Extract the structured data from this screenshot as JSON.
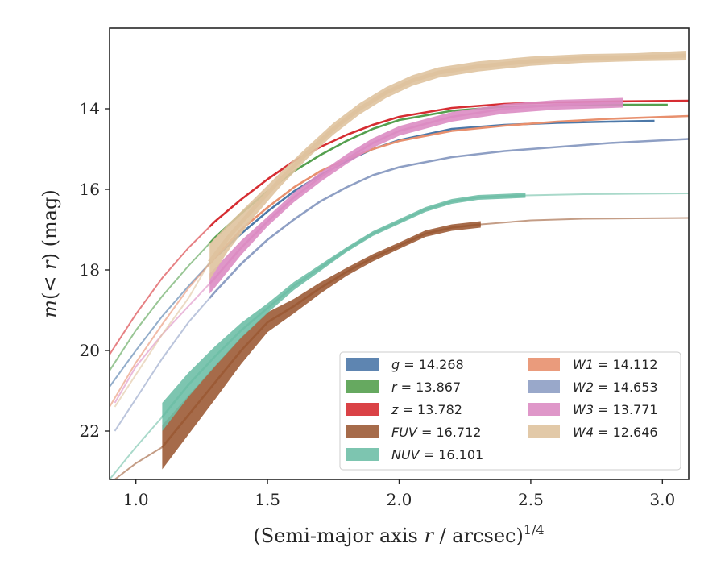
{
  "chart_data": {
    "type": "line",
    "title": "",
    "xlabel": "(Semi-major axis r / arcsec)^{1/4}",
    "xlabel_parts": {
      "prefix": "(Semi-major axis ",
      "var": "r",
      "suffix": " / arcsec)",
      "superscript": "1/4"
    },
    "ylabel": "m(< r) (mag)",
    "ylabel_parts": {
      "italic_a": "m",
      "upright_b": "(",
      "italic_c": "< r",
      "upright_d": ") (mag)"
    },
    "xlim": [
      0.9,
      3.1
    ],
    "ylim": [
      23.2,
      12.0
    ],
    "y_inverted": true,
    "x_ticks": [
      1.0,
      1.5,
      2.0,
      2.5,
      3.0
    ],
    "x_tick_labels": [
      "1.0",
      "1.5",
      "2.0",
      "2.5",
      "3.0"
    ],
    "y_ticks": [
      14,
      16,
      18,
      20,
      22
    ],
    "y_tick_labels": [
      "14",
      "16",
      "18",
      "20",
      "22"
    ],
    "grid": false,
    "legend_position": "lower-right",
    "legend_columns": 2,
    "series": [
      {
        "name": "g",
        "label": "g = 14.268",
        "color": "#4c78a8",
        "x": [
          0.9,
          1.0,
          1.1,
          1.2,
          1.3,
          1.4,
          1.5,
          1.6,
          1.7,
          1.8,
          1.9,
          2.0,
          2.2,
          2.4,
          2.6,
          2.8,
          2.97
        ],
        "y": [
          20.9,
          20.0,
          19.15,
          18.4,
          17.7,
          17.1,
          16.55,
          16.05,
          15.65,
          15.3,
          15.0,
          14.78,
          14.5,
          14.4,
          14.35,
          14.32,
          14.3
        ],
        "solid_from": 1.28,
        "band": [],
        "end_label": "14.268"
      },
      {
        "name": "r",
        "label": "r = 13.867",
        "color": "#55a04f",
        "x": [
          0.9,
          1.0,
          1.1,
          1.2,
          1.3,
          1.4,
          1.5,
          1.6,
          1.7,
          1.8,
          1.9,
          2.0,
          2.2,
          2.4,
          2.6,
          2.8,
          3.02
        ],
        "y": [
          20.5,
          19.5,
          18.65,
          17.9,
          17.2,
          16.6,
          16.05,
          15.55,
          15.15,
          14.8,
          14.5,
          14.28,
          14.05,
          13.95,
          13.92,
          13.9,
          13.9
        ],
        "solid_from": 1.28,
        "band": [],
        "end_label": "13.867"
      },
      {
        "name": "z",
        "label": "z = 13.782",
        "color": "#d62d32",
        "x": [
          0.9,
          1.0,
          1.1,
          1.2,
          1.3,
          1.4,
          1.5,
          1.6,
          1.7,
          1.8,
          1.9,
          2.0,
          2.2,
          2.4,
          2.6,
          2.8,
          3.1
        ],
        "y": [
          20.1,
          19.1,
          18.2,
          17.45,
          16.8,
          16.25,
          15.75,
          15.3,
          14.95,
          14.65,
          14.4,
          14.2,
          13.98,
          13.88,
          13.84,
          13.82,
          13.8
        ],
        "solid_from": 1.28,
        "band": [],
        "end_label": "13.782"
      },
      {
        "name": "FUV",
        "label": "FUV = 16.712",
        "color": "#9c5b36",
        "x": [
          0.92,
          1.0,
          1.1,
          1.2,
          1.3,
          1.4,
          1.5,
          1.6,
          1.7,
          1.8,
          1.9,
          2.0,
          2.1,
          2.2,
          2.31,
          2.5,
          2.7,
          2.9,
          3.1
        ],
        "y": [
          23.2,
          22.8,
          22.4,
          21.6,
          20.8,
          20.0,
          19.3,
          18.9,
          18.45,
          18.05,
          17.7,
          17.4,
          17.1,
          16.95,
          16.87,
          16.77,
          16.73,
          16.72,
          16.71
        ],
        "solid_from": 1.1,
        "solid_to": 2.31,
        "band": [
          [
            1.1,
            0.55
          ],
          [
            1.33,
            0.4
          ],
          [
            1.55,
            0.2
          ],
          [
            1.8,
            0.1
          ],
          [
            2.0,
            0.08
          ]
        ],
        "end_label": "16.712"
      },
      {
        "name": "NUV",
        "label": "NUV = 16.101",
        "color": "#6fbfa7",
        "x": [
          0.9,
          1.0,
          1.1,
          1.2,
          1.3,
          1.4,
          1.5,
          1.6,
          1.7,
          1.8,
          1.9,
          2.0,
          2.1,
          2.2,
          2.3,
          2.48,
          2.7,
          2.9,
          3.1
        ],
        "y": [
          23.2,
          22.4,
          21.65,
          20.85,
          20.15,
          19.5,
          18.95,
          18.4,
          17.95,
          17.5,
          17.1,
          16.8,
          16.5,
          16.3,
          16.2,
          16.15,
          16.12,
          16.11,
          16.1
        ],
        "solid_from": 1.1,
        "solid_to": 2.48,
        "band": [
          [
            1.1,
            0.35
          ],
          [
            1.3,
            0.25
          ],
          [
            1.5,
            0.12
          ],
          [
            1.8,
            0.06
          ]
        ],
        "end_label": "16.101"
      },
      {
        "name": "W1",
        "label": "W1 = 14.112",
        "color": "#e8906e",
        "x": [
          0.9,
          1.0,
          1.1,
          1.2,
          1.3,
          1.4,
          1.5,
          1.6,
          1.7,
          1.8,
          1.9,
          2.0,
          2.2,
          2.4,
          2.6,
          2.8,
          3.1
        ],
        "y": [
          21.4,
          20.3,
          19.35,
          18.45,
          17.7,
          17.0,
          16.45,
          15.95,
          15.55,
          15.25,
          15.0,
          14.8,
          14.55,
          14.42,
          14.32,
          14.25,
          14.18
        ],
        "solid_from": 1.28,
        "band": [],
        "end_label": "14.112"
      },
      {
        "name": "W2",
        "label": "W2 = 14.653",
        "color": "#8e9fc4",
        "x": [
          0.92,
          1.0,
          1.1,
          1.2,
          1.3,
          1.4,
          1.5,
          1.6,
          1.7,
          1.8,
          1.9,
          2.0,
          2.2,
          2.4,
          2.6,
          2.8,
          3.1
        ],
        "y": [
          22.0,
          21.2,
          20.2,
          19.3,
          18.55,
          17.85,
          17.25,
          16.75,
          16.3,
          15.95,
          15.65,
          15.45,
          15.2,
          15.05,
          14.95,
          14.85,
          14.75
        ],
        "solid_from": 1.28,
        "band": [],
        "end_label": "14.653"
      },
      {
        "name": "W3",
        "label": "W3 = 13.771",
        "color": "#dc8cc3",
        "x": [
          0.92,
          1.0,
          1.1,
          1.2,
          1.3,
          1.4,
          1.5,
          1.6,
          1.7,
          1.8,
          1.9,
          2.0,
          2.2,
          2.4,
          2.6,
          2.85
        ],
        "y": [
          21.3,
          20.4,
          19.6,
          18.9,
          18.2,
          17.45,
          16.8,
          16.2,
          15.7,
          15.25,
          14.85,
          14.55,
          14.2,
          14.0,
          13.9,
          13.85
        ],
        "solid_from": 1.28,
        "band": [
          [
            1.28,
            0.25
          ],
          [
            1.5,
            0.12
          ]
        ],
        "end_label": "13.771"
      },
      {
        "name": "W4",
        "label": "W4 = 12.646",
        "color": "#dfc39f",
        "x": [
          0.92,
          1.0,
          1.1,
          1.2,
          1.28,
          1.35,
          1.45,
          1.55,
          1.65,
          1.75,
          1.85,
          1.95,
          2.05,
          2.15,
          2.3,
          2.5,
          2.7,
          2.9,
          3.09
        ],
        "y": [
          21.4,
          20.6,
          19.6,
          18.7,
          17.8,
          17.2,
          16.45,
          15.75,
          15.1,
          14.5,
          14.0,
          13.6,
          13.3,
          13.1,
          12.95,
          12.82,
          12.75,
          12.72,
          12.68
        ],
        "solid_from": 1.28,
        "band": [
          [
            1.28,
            0.45
          ],
          [
            1.4,
            0.25
          ],
          [
            1.6,
            0.15
          ],
          [
            2.9,
            0.1
          ],
          [
            3.09,
            0.12
          ]
        ],
        "end_label": "12.646"
      }
    ]
  }
}
